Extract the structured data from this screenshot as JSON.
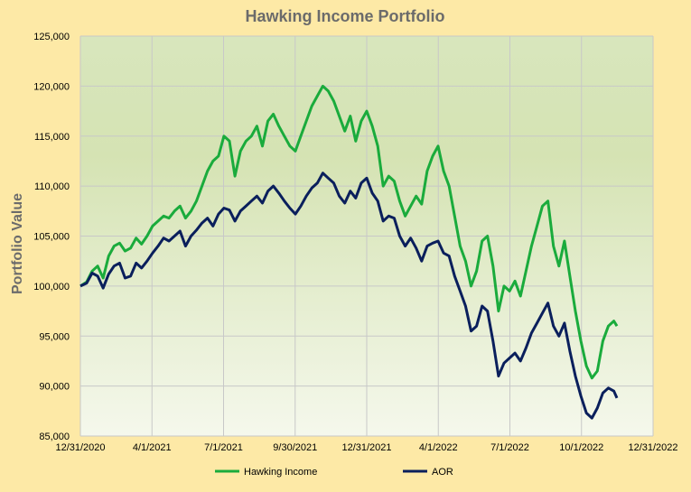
{
  "chart_data": {
    "type": "line",
    "title": "Hawking Income Portfolio",
    "xlabel": "",
    "ylabel": "Portfolio Value",
    "x_ticks": [
      "12/31/2020",
      "4/1/2021",
      "7/1/2021",
      "9/30/2021",
      "12/31/2021",
      "4/1/2022",
      "7/1/2022",
      "10/1/2022",
      "12/31/2022"
    ],
    "y_ticks": [
      "85,000",
      "90,000",
      "95,000",
      "100,000",
      "105,000",
      "110,000",
      "115,000",
      "120,000",
      "125,000"
    ],
    "xlim": [
      "2020-12-31",
      "2022-12-31"
    ],
    "ylim": [
      85000,
      125000
    ],
    "grid": true,
    "legend_position": "bottom",
    "series": [
      {
        "name": "Hawking Income",
        "color": "#1aab3c",
        "points": [
          [
            "2020-12-31",
            100000
          ],
          [
            "2021-01-08",
            100400
          ],
          [
            "2021-01-15",
            101500
          ],
          [
            "2021-01-22",
            102000
          ],
          [
            "2021-01-29",
            100800
          ],
          [
            "2021-02-05",
            103000
          ],
          [
            "2021-02-12",
            104000
          ],
          [
            "2021-02-19",
            104300
          ],
          [
            "2021-02-26",
            103500
          ],
          [
            "2021-03-05",
            103800
          ],
          [
            "2021-03-12",
            104800
          ],
          [
            "2021-03-19",
            104200
          ],
          [
            "2021-03-26",
            105000
          ],
          [
            "2021-04-02",
            106000
          ],
          [
            "2021-04-09",
            106500
          ],
          [
            "2021-04-16",
            107000
          ],
          [
            "2021-04-23",
            106800
          ],
          [
            "2021-04-30",
            107500
          ],
          [
            "2021-05-07",
            108000
          ],
          [
            "2021-05-14",
            106800
          ],
          [
            "2021-05-21",
            107500
          ],
          [
            "2021-05-28",
            108500
          ],
          [
            "2021-06-04",
            110000
          ],
          [
            "2021-06-11",
            111500
          ],
          [
            "2021-06-18",
            112500
          ],
          [
            "2021-06-25",
            113000
          ],
          [
            "2021-07-02",
            115000
          ],
          [
            "2021-07-09",
            114500
          ],
          [
            "2021-07-16",
            111000
          ],
          [
            "2021-07-23",
            113500
          ],
          [
            "2021-07-30",
            114500
          ],
          [
            "2021-08-06",
            115000
          ],
          [
            "2021-08-13",
            116000
          ],
          [
            "2021-08-20",
            114000
          ],
          [
            "2021-08-27",
            116500
          ],
          [
            "2021-09-03",
            117200
          ],
          [
            "2021-09-10",
            116000
          ],
          [
            "2021-09-17",
            115000
          ],
          [
            "2021-09-24",
            114000
          ],
          [
            "2021-10-01",
            113500
          ],
          [
            "2021-10-08",
            115000
          ],
          [
            "2021-10-15",
            116500
          ],
          [
            "2021-10-22",
            118000
          ],
          [
            "2021-10-29",
            119000
          ],
          [
            "2021-11-05",
            120000
          ],
          [
            "2021-11-12",
            119500
          ],
          [
            "2021-11-19",
            118500
          ],
          [
            "2021-11-26",
            117000
          ],
          [
            "2021-12-03",
            115500
          ],
          [
            "2021-12-10",
            117000
          ],
          [
            "2021-12-17",
            114500
          ],
          [
            "2021-12-24",
            116500
          ],
          [
            "2021-12-31",
            117500
          ],
          [
            "2022-01-07",
            116000
          ],
          [
            "2022-01-14",
            114000
          ],
          [
            "2022-01-21",
            110000
          ],
          [
            "2022-01-28",
            111000
          ],
          [
            "2022-02-04",
            110500
          ],
          [
            "2022-02-11",
            108500
          ],
          [
            "2022-02-18",
            107000
          ],
          [
            "2022-02-25",
            108000
          ],
          [
            "2022-03-04",
            109000
          ],
          [
            "2022-03-11",
            108200
          ],
          [
            "2022-03-18",
            111500
          ],
          [
            "2022-03-25",
            113000
          ],
          [
            "2022-04-01",
            114000
          ],
          [
            "2022-04-08",
            111500
          ],
          [
            "2022-04-15",
            110000
          ],
          [
            "2022-04-22",
            107000
          ],
          [
            "2022-04-29",
            104000
          ],
          [
            "2022-05-06",
            102500
          ],
          [
            "2022-05-13",
            100000
          ],
          [
            "2022-05-20",
            101500
          ],
          [
            "2022-05-27",
            104500
          ],
          [
            "2022-06-03",
            105000
          ],
          [
            "2022-06-10",
            102000
          ],
          [
            "2022-06-17",
            97500
          ],
          [
            "2022-06-24",
            100000
          ],
          [
            "2022-07-01",
            99500
          ],
          [
            "2022-07-08",
            100500
          ],
          [
            "2022-07-15",
            99000
          ],
          [
            "2022-07-22",
            101500
          ],
          [
            "2022-07-29",
            104000
          ],
          [
            "2022-08-05",
            106000
          ],
          [
            "2022-08-12",
            108000
          ],
          [
            "2022-08-19",
            108500
          ],
          [
            "2022-08-26",
            104000
          ],
          [
            "2022-09-02",
            102000
          ],
          [
            "2022-09-09",
            104500
          ],
          [
            "2022-09-16",
            101000
          ],
          [
            "2022-09-23",
            97500
          ],
          [
            "2022-09-30",
            94500
          ],
          [
            "2022-10-07",
            92000
          ],
          [
            "2022-10-14",
            90800
          ],
          [
            "2022-10-21",
            91500
          ],
          [
            "2022-10-28",
            94500
          ],
          [
            "2022-11-04",
            96000
          ],
          [
            "2022-11-11",
            96500
          ],
          [
            "2022-11-15",
            96000
          ]
        ]
      },
      {
        "name": "AOR",
        "color": "#0a1f5c",
        "points": [
          [
            "2020-12-31",
            100000
          ],
          [
            "2021-01-08",
            100300
          ],
          [
            "2021-01-15",
            101300
          ],
          [
            "2021-01-22",
            101000
          ],
          [
            "2021-01-29",
            99800
          ],
          [
            "2021-02-05",
            101200
          ],
          [
            "2021-02-12",
            102000
          ],
          [
            "2021-02-19",
            102300
          ],
          [
            "2021-02-26",
            100800
          ],
          [
            "2021-03-05",
            101000
          ],
          [
            "2021-03-12",
            102300
          ],
          [
            "2021-03-19",
            101800
          ],
          [
            "2021-03-26",
            102500
          ],
          [
            "2021-04-02",
            103300
          ],
          [
            "2021-04-09",
            104000
          ],
          [
            "2021-04-16",
            104800
          ],
          [
            "2021-04-23",
            104500
          ],
          [
            "2021-04-30",
            105000
          ],
          [
            "2021-05-07",
            105500
          ],
          [
            "2021-05-14",
            104000
          ],
          [
            "2021-05-21",
            105000
          ],
          [
            "2021-05-28",
            105600
          ],
          [
            "2021-06-04",
            106300
          ],
          [
            "2021-06-11",
            106800
          ],
          [
            "2021-06-18",
            106000
          ],
          [
            "2021-06-25",
            107200
          ],
          [
            "2021-07-02",
            107800
          ],
          [
            "2021-07-09",
            107600
          ],
          [
            "2021-07-16",
            106500
          ],
          [
            "2021-07-23",
            107500
          ],
          [
            "2021-07-30",
            108000
          ],
          [
            "2021-08-06",
            108500
          ],
          [
            "2021-08-13",
            109000
          ],
          [
            "2021-08-20",
            108300
          ],
          [
            "2021-08-27",
            109500
          ],
          [
            "2021-09-03",
            110000
          ],
          [
            "2021-09-10",
            109300
          ],
          [
            "2021-09-17",
            108500
          ],
          [
            "2021-09-24",
            107800
          ],
          [
            "2021-10-01",
            107200
          ],
          [
            "2021-10-08",
            108000
          ],
          [
            "2021-10-15",
            109000
          ],
          [
            "2021-10-22",
            109800
          ],
          [
            "2021-10-29",
            110300
          ],
          [
            "2021-11-05",
            111300
          ],
          [
            "2021-11-12",
            110800
          ],
          [
            "2021-11-19",
            110300
          ],
          [
            "2021-11-26",
            109000
          ],
          [
            "2021-12-03",
            108300
          ],
          [
            "2021-12-10",
            109500
          ],
          [
            "2021-12-17",
            108800
          ],
          [
            "2021-12-24",
            110300
          ],
          [
            "2021-12-31",
            110800
          ],
          [
            "2022-01-07",
            109300
          ],
          [
            "2022-01-14",
            108500
          ],
          [
            "2022-01-21",
            106500
          ],
          [
            "2022-01-28",
            107000
          ],
          [
            "2022-02-04",
            106800
          ],
          [
            "2022-02-11",
            105000
          ],
          [
            "2022-02-18",
            104000
          ],
          [
            "2022-02-25",
            104800
          ],
          [
            "2022-03-04",
            103800
          ],
          [
            "2022-03-11",
            102500
          ],
          [
            "2022-03-18",
            104000
          ],
          [
            "2022-03-25",
            104300
          ],
          [
            "2022-04-01",
            104500
          ],
          [
            "2022-04-08",
            103300
          ],
          [
            "2022-04-15",
            103000
          ],
          [
            "2022-04-22",
            101000
          ],
          [
            "2022-04-29",
            99500
          ],
          [
            "2022-05-06",
            98000
          ],
          [
            "2022-05-13",
            95500
          ],
          [
            "2022-05-20",
            96000
          ],
          [
            "2022-05-27",
            98000
          ],
          [
            "2022-06-03",
            97500
          ],
          [
            "2022-06-10",
            94500
          ],
          [
            "2022-06-17",
            91000
          ],
          [
            "2022-06-24",
            92300
          ],
          [
            "2022-07-01",
            92800
          ],
          [
            "2022-07-08",
            93300
          ],
          [
            "2022-07-15",
            92500
          ],
          [
            "2022-07-22",
            93800
          ],
          [
            "2022-07-29",
            95300
          ],
          [
            "2022-08-05",
            96300
          ],
          [
            "2022-08-12",
            97300
          ],
          [
            "2022-08-19",
            98300
          ],
          [
            "2022-08-26",
            96000
          ],
          [
            "2022-09-02",
            95000
          ],
          [
            "2022-09-09",
            96300
          ],
          [
            "2022-09-16",
            93500
          ],
          [
            "2022-09-23",
            91000
          ],
          [
            "2022-09-30",
            89000
          ],
          [
            "2022-10-07",
            87300
          ],
          [
            "2022-10-14",
            86800
          ],
          [
            "2022-10-21",
            87800
          ],
          [
            "2022-10-28",
            89300
          ],
          [
            "2022-11-04",
            89800
          ],
          [
            "2022-11-11",
            89500
          ],
          [
            "2022-11-15",
            88800
          ]
        ]
      }
    ]
  }
}
